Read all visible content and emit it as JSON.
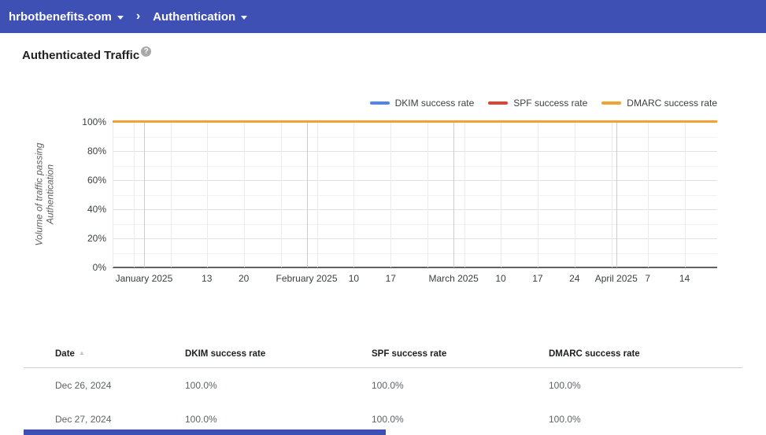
{
  "topbar": {
    "domain": "hrbotbenefits.com",
    "separator": "›",
    "section": "Authentication"
  },
  "page": {
    "title": "Authenticated Traffic",
    "help_icon": "?"
  },
  "colors": {
    "topbar_bg": "#3e50b4",
    "dkim": "#5383ec",
    "spf": "#db4437",
    "dmarc": "#f0a32f",
    "axis_line": "#616161",
    "grid_major": "#e0e0e0",
    "grid_minor": "#f2f2f2",
    "grid_week": "#ebebeb",
    "grid_month": "#cccccc"
  },
  "chart_data": {
    "type": "line",
    "title": "Authenticated Traffic",
    "ylabel_lines": [
      "Volume of traffic passing",
      "Authentication"
    ],
    "ylim": [
      0,
      100
    ],
    "grid": true,
    "legend_position": "top-right",
    "y_major_ticks": [
      {
        "value": 100,
        "label": "100%"
      },
      {
        "value": 80,
        "label": "80%"
      },
      {
        "value": 60,
        "label": "60%"
      },
      {
        "value": 40,
        "label": "40%"
      },
      {
        "value": 20,
        "label": "20%"
      },
      {
        "value": 0,
        "label": "0%"
      }
    ],
    "y_minor_values": [
      90,
      70,
      50,
      30,
      10
    ],
    "x_ticks": [
      {
        "pos": 0,
        "date": "Dec 26",
        "label": "",
        "month": false
      },
      {
        "pos": 3.5,
        "date": "Dec 30",
        "label": "",
        "month": false
      },
      {
        "pos": 5.2,
        "date": "Jan 1",
        "label": "January 2025",
        "month": true
      },
      {
        "pos": 9.6,
        "date": "Jan 6",
        "label": "",
        "month": false
      },
      {
        "pos": 15.6,
        "date": "Jan 13",
        "label": "13",
        "month": false
      },
      {
        "pos": 21.7,
        "date": "Jan 20",
        "label": "20",
        "month": false
      },
      {
        "pos": 27.8,
        "date": "Jan 27",
        "label": "",
        "month": false
      },
      {
        "pos": 32.1,
        "date": "Feb 1",
        "label": "February 2025",
        "month": true
      },
      {
        "pos": 33.9,
        "date": "Feb 3",
        "label": "",
        "month": false
      },
      {
        "pos": 39.9,
        "date": "Feb 10",
        "label": "10",
        "month": false
      },
      {
        "pos": 46.0,
        "date": "Feb 17",
        "label": "17",
        "month": false
      },
      {
        "pos": 52.1,
        "date": "Feb 24",
        "label": "",
        "month": false
      },
      {
        "pos": 56.4,
        "date": "Mar 1",
        "label": "March 2025",
        "month": true
      },
      {
        "pos": 58.2,
        "date": "Mar 3",
        "label": "",
        "month": false
      },
      {
        "pos": 64.2,
        "date": "Mar 10",
        "label": "10",
        "month": false
      },
      {
        "pos": 70.3,
        "date": "Mar 17",
        "label": "17",
        "month": false
      },
      {
        "pos": 76.4,
        "date": "Mar 24",
        "label": "24",
        "month": false
      },
      {
        "pos": 82.5,
        "date": "Mar 31",
        "label": "",
        "month": false
      },
      {
        "pos": 83.3,
        "date": "Apr 1",
        "label": "April 2025",
        "month": true
      },
      {
        "pos": 88.5,
        "date": "Apr 7",
        "label": "7",
        "month": false
      },
      {
        "pos": 94.6,
        "date": "Apr 14",
        "label": "14",
        "month": false
      }
    ],
    "series": [
      {
        "name": "DKIM success rate",
        "color_key": "dkim",
        "value": 100
      },
      {
        "name": "SPF success rate",
        "color_key": "spf",
        "value": 100
      },
      {
        "name": "DMARC success rate",
        "color_key": "dmarc",
        "value": 100
      }
    ]
  },
  "table": {
    "sort_arrow": "▲",
    "columns": [
      {
        "label": "Date",
        "sorted": "asc"
      },
      {
        "label": "DKIM success rate",
        "sorted": ""
      },
      {
        "label": "SPF success rate",
        "sorted": ""
      },
      {
        "label": "DMARC success rate",
        "sorted": ""
      }
    ],
    "rows": [
      [
        "Dec 26, 2024",
        "100.0%",
        "100.0%",
        "100.0%"
      ],
      [
        "Dec 27, 2024",
        "100.0%",
        "100.0%",
        "100.0%"
      ]
    ]
  }
}
